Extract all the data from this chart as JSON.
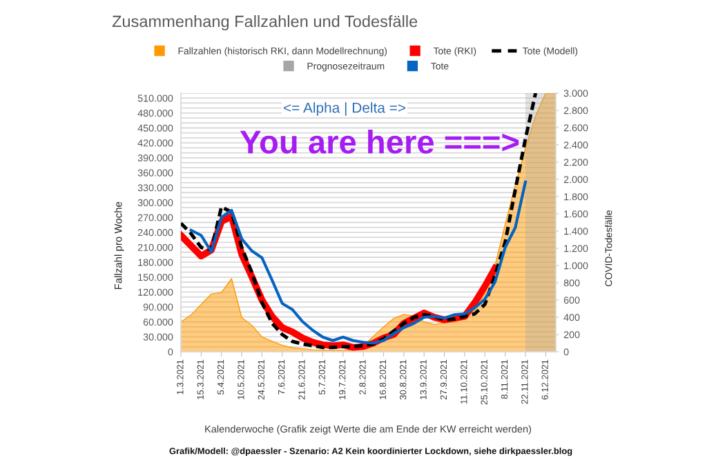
{
  "chart_data": {
    "type": "line",
    "title": "Zusammenhang Fallzahlen und Todesfälle",
    "xlabel": "Kalenderwoche (Grafik zeigt Werte die am Ende der KW erreicht werden)",
    "ylabel": "Fallzahl pro Woche",
    "y2label": "COVID-Todesfälle",
    "categories": [
      "1.3.2021",
      null,
      "15.3.2021",
      null,
      "5.4.2021",
      null,
      "10.5.2021",
      null,
      "24.5.2021",
      null,
      "7.6.2021",
      null,
      "21.6.2021",
      null,
      "5.7.2021",
      null,
      "19.7.2021",
      null,
      "2.8.2021",
      null,
      "16.8.2021",
      null,
      "30.8.2021",
      null,
      "13.9.2021",
      null,
      "27.9.2021",
      null,
      "11.10.2021",
      null,
      "25.10.2021",
      null,
      "8.11.2021",
      null,
      "22.11.2021",
      null,
      "6.12.2021",
      null
    ],
    "series": [
      {
        "name": "Fallzahlen (historisch RKI, dann Modellrechnung)",
        "type": "area",
        "color": "#ff9900",
        "values": [
          60000,
          74000,
          95000,
          116000,
          119000,
          147000,
          69000,
          53000,
          30000,
          21000,
          13000,
          8000,
          6000,
          4000,
          3000,
          3000,
          3000,
          4000,
          12000,
          31000,
          50000,
          67000,
          75000,
          72000,
          60000,
          55000,
          58000,
          60000,
          67000,
          85000,
          118000,
          173000,
          256000,
          335000,
          409000,
          474000,
          520000,
          520000
        ]
      },
      {
        "name": "Tote (RKI)",
        "axis": "y2",
        "color": "#ff0000",
        "line_style": "solid",
        "values": [
          1350,
          1230,
          1110,
          1180,
          1510,
          1570,
          1130,
          870,
          600,
          410,
          280,
          230,
          160,
          110,
          80,
          70,
          80,
          50,
          60,
          100,
          160,
          200,
          330,
          390,
          450,
          400,
          370,
          390,
          410,
          570,
          760,
          970,
          null,
          null,
          null,
          null,
          null,
          null
        ]
      },
      {
        "name": "Tote (Modell)",
        "axis": "y2",
        "color": "#000000",
        "line_style": "dashed",
        "values": [
          1490,
          1370,
          1210,
          1180,
          1680,
          1620,
          1210,
          920,
          570,
          330,
          200,
          120,
          90,
          70,
          50,
          50,
          60,
          60,
          70,
          90,
          150,
          240,
          330,
          400,
          430,
          410,
          370,
          380,
          410,
          440,
          550,
          890,
          1270,
          1880,
          2470,
          3000,
          null,
          null
        ]
      },
      {
        "name": "Prognosezeitraum",
        "type": "area",
        "color": "#a6a6a6",
        "values": [
          null,
          null,
          null,
          null,
          null,
          null,
          null,
          null,
          null,
          null,
          null,
          null,
          null,
          null,
          null,
          null,
          null,
          null,
          null,
          null,
          null,
          null,
          null,
          null,
          null,
          null,
          null,
          null,
          null,
          null,
          null,
          null,
          null,
          null,
          520000,
          520000,
          520000,
          520000
        ]
      },
      {
        "name": "Tote",
        "axis": "y2",
        "color": "#0563c1",
        "line_style": "solid",
        "values": [
          null,
          1410,
          1350,
          1160,
          1560,
          1640,
          1310,
          1170,
          1090,
          830,
          560,
          490,
          350,
          250,
          170,
          130,
          170,
          130,
          110,
          100,
          130,
          210,
          280,
          330,
          400,
          410,
          390,
          430,
          440,
          510,
          610,
          810,
          1210,
          1440,
          1970,
          null,
          null,
          null
        ]
      }
    ],
    "ylim": [
      0,
      520000
    ],
    "yticks": [
      0,
      {
        "value": 10000,
        "label": null
      },
      {
        "value": 20000,
        "label": null
      },
      {
        "value": 30000,
        "label": "30.000"
      },
      {
        "value": 40000,
        "label": null
      },
      {
        "value": 50000,
        "label": null
      },
      {
        "value": 60000,
        "label": "60.000"
      },
      {
        "value": 70000,
        "label": null
      },
      {
        "value": 80000,
        "label": null
      },
      {
        "value": 90000,
        "label": "90.000"
      },
      {
        "value": 100000,
        "label": null
      },
      {
        "value": 110000,
        "label": null
      },
      {
        "value": 120000,
        "label": "120.000"
      },
      {
        "value": 130000,
        "label": null
      },
      {
        "value": 140000,
        "label": null
      },
      {
        "value": 150000,
        "label": "150.000"
      },
      {
        "value": 160000,
        "label": null
      },
      {
        "value": 170000,
        "label": null
      },
      {
        "value": 180000,
        "label": "180.000"
      },
      {
        "value": 190000,
        "label": null
      },
      {
        "value": 200000,
        "label": null
      },
      {
        "value": 210000,
        "label": "210.000"
      },
      {
        "value": 220000,
        "label": null
      },
      {
        "value": 230000,
        "label": null
      },
      {
        "value": 240000,
        "label": "240.000"
      },
      {
        "value": 250000,
        "label": null
      },
      {
        "value": 260000,
        "label": null
      },
      {
        "value": 270000,
        "label": "270.000"
      },
      {
        "value": 280000,
        "label": null
      },
      {
        "value": 290000,
        "label": null
      },
      {
        "value": 300000,
        "label": "300.000"
      },
      {
        "value": 310000,
        "label": null
      },
      {
        "value": 320000,
        "label": null
      },
      {
        "value": 330000,
        "label": "330.000"
      },
      {
        "value": 340000,
        "label": null
      },
      {
        "value": 350000,
        "label": null
      },
      {
        "value": 360000,
        "label": "360.000"
      },
      {
        "value": 370000,
        "label": null
      },
      {
        "value": 380000,
        "label": null
      },
      {
        "value": 390000,
        "label": "390.000"
      },
      {
        "value": 400000,
        "label": null
      },
      {
        "value": 410000,
        "label": null
      },
      {
        "value": 420000,
        "label": "420.000"
      },
      {
        "value": 430000,
        "label": null
      },
      {
        "value": 440000,
        "label": null
      },
      {
        "value": 450000,
        "label": "450.000"
      },
      {
        "value": 460000,
        "label": null
      },
      {
        "value": 470000,
        "label": null
      },
      {
        "value": 480000,
        "label": "480.000"
      },
      {
        "value": 490000,
        "label": null
      },
      {
        "value": 500000,
        "label": null
      },
      {
        "value": 510000,
        "label": "510.000"
      },
      {
        "value": 520000,
        "label": null
      }
    ],
    "y2lim": [
      0,
      3000
    ],
    "y2ticks": [
      0,
      200,
      400,
      600,
      800,
      {
        "value": 1000,
        "label": "1.000"
      },
      {
        "value": 1200,
        "label": "1.200"
      },
      {
        "value": 1400,
        "label": "1.400"
      },
      {
        "value": 1600,
        "label": "1.600"
      },
      {
        "value": 1800,
        "label": "1.800"
      },
      {
        "value": 2000,
        "label": "2.000"
      },
      {
        "value": 2200,
        "label": "2.200"
      },
      {
        "value": 2400,
        "label": "2.400"
      },
      {
        "value": 2600,
        "label": "2.600"
      },
      {
        "value": 2800,
        "label": "2.800"
      },
      {
        "value": 3000,
        "label": "3.000"
      }
    ],
    "grid": "y",
    "legend": "top",
    "annotations": [
      "<= Alpha | Delta =>",
      "You are here ===>",
      "Grafik/Modell: @dpaessler - Szenario: A2 Kein koordinierter Lockdown, siehe dirkpaessler.blog"
    ]
  }
}
